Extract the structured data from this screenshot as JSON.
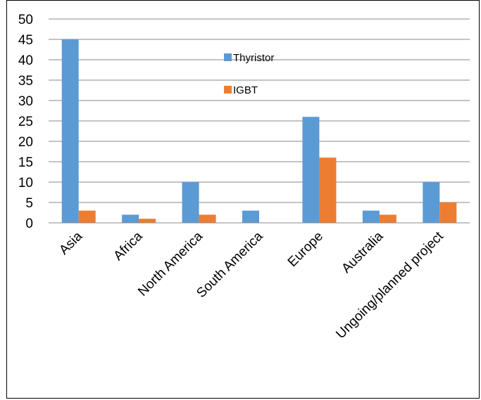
{
  "chart_data": {
    "type": "bar",
    "categories": [
      "Asia",
      "Africa",
      "North America",
      "South America",
      "Europe",
      "Australia",
      "Ungoing/planned project"
    ],
    "series": [
      {
        "name": "Thyristor",
        "color": "#5B9BD5",
        "values": [
          45,
          2,
          10,
          3,
          26,
          3,
          10
        ]
      },
      {
        "name": "IGBT",
        "color": "#ED7D31",
        "values": [
          3,
          1,
          2,
          0,
          16,
          2,
          5
        ]
      }
    ],
    "yticks": [
      "0",
      "5",
      "10",
      "15",
      "20",
      "25",
      "30",
      "35",
      "40",
      "45",
      "50"
    ],
    "ylim": [
      0,
      50
    ],
    "grid": true,
    "legend_position": "top-center"
  }
}
